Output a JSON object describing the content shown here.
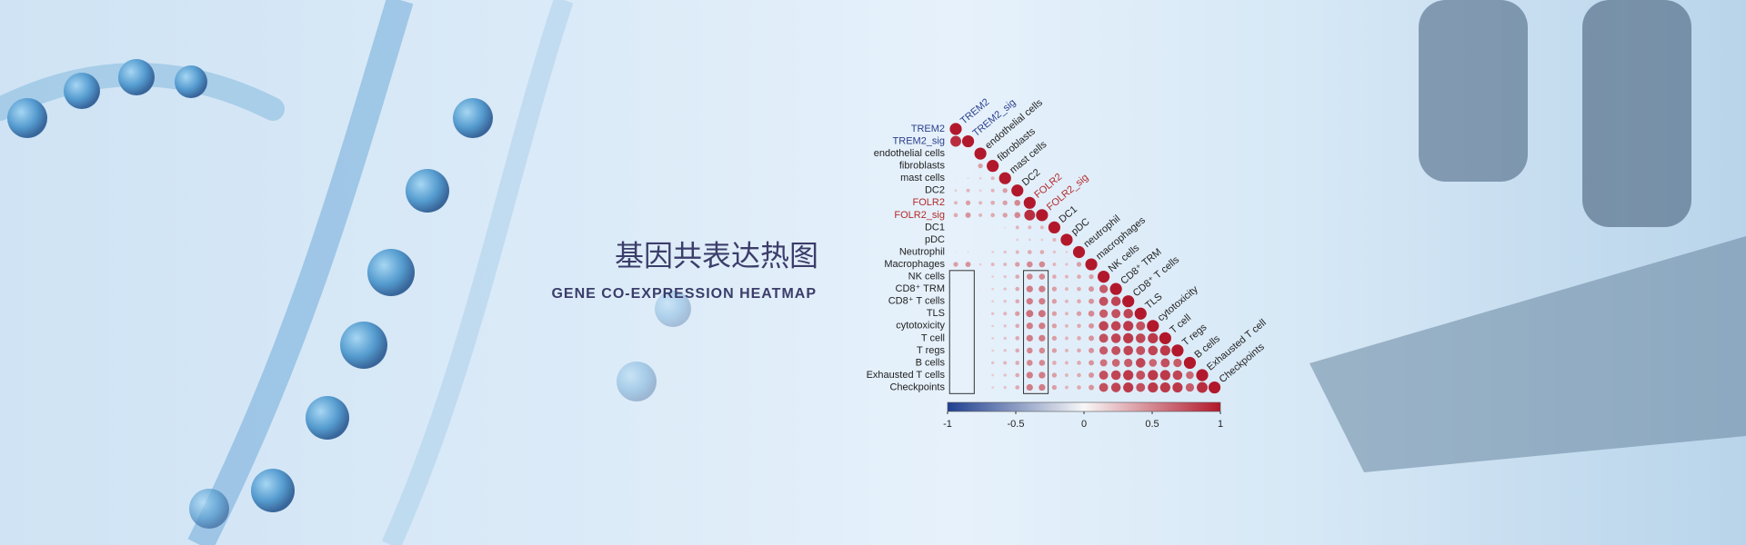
{
  "banner": {
    "title": "基因共表达热图",
    "subtitle": "GENE CO-EXPRESSION HEATMAP"
  },
  "chart_data": {
    "type": "correlation",
    "rows": [
      "TREM2",
      "TREM2_sig",
      "endothelial cells",
      "fibroblasts",
      "mast cells",
      "DC2",
      "FOLR2",
      "FOLR2_sig",
      "DC1",
      "pDC",
      "Neutrophil",
      "Macrophages",
      "NK cells",
      "CD8⁺ TRM",
      "CD8⁺ T cells",
      "TLS",
      "cytotoxicity",
      "T cell",
      "T regs",
      "B cells",
      "Exhausted T cells",
      "Checkpoints"
    ],
    "columns": [
      "TREM2",
      "TREM2_sig",
      "endothelial cells",
      "fibroblasts",
      "mast cells",
      "DC2",
      "FOLR2",
      "FOLR2_sig",
      "DC1",
      "pDC",
      "neutrophil",
      "macrophages",
      "NK cells",
      "CD8⁺ TRM",
      "CD8⁺ T cells",
      "TLS",
      "cytotoxicity",
      "T cell",
      "T regs",
      "B cells",
      "Exhausted T cell",
      "Checkpoints"
    ],
    "label_colors": [
      "#2b3f8c",
      "#2b3f8c",
      "#222222",
      "#222222",
      "#222222",
      "#222222",
      "#b22a2a",
      "#b22a2a",
      "#222222",
      "#222222",
      "#222222",
      "#222222",
      "#222222",
      "#222222",
      "#222222",
      "#222222",
      "#222222",
      "#222222",
      "#222222",
      "#222222",
      "#222222",
      "#222222"
    ],
    "values": [
      [
        1
      ],
      [
        0.9,
        1
      ],
      [
        -0.05,
        -0.05,
        1
      ],
      [
        0.05,
        0.1,
        0.4,
        1
      ],
      [
        0.1,
        0.15,
        0.2,
        0.3,
        1
      ],
      [
        0.2,
        0.3,
        0.2,
        0.3,
        0.4,
        1
      ],
      [
        0.3,
        0.4,
        0.3,
        0.35,
        0.4,
        0.5,
        1
      ],
      [
        0.35,
        0.45,
        0.3,
        0.35,
        0.4,
        0.5,
        0.9,
        1
      ],
      [
        -0.05,
        0,
        -0.05,
        0.1,
        0.15,
        0.3,
        0.3,
        0.3,
        1
      ],
      [
        0,
        0.05,
        -0.05,
        0.05,
        0.1,
        0.2,
        0.2,
        0.2,
        0.3,
        1
      ],
      [
        0.1,
        0.15,
        0.1,
        0.2,
        0.25,
        0.3,
        0.35,
        0.35,
        0.25,
        0.2,
        1
      ],
      [
        0.4,
        0.45,
        0.2,
        0.3,
        0.3,
        0.4,
        0.5,
        0.5,
        0.3,
        0.25,
        0.4,
        1
      ],
      [
        -0.05,
        -0.05,
        0.1,
        0.2,
        0.25,
        0.35,
        0.5,
        0.5,
        0.35,
        0.3,
        0.35,
        0.4,
        1
      ],
      [
        -0.05,
        -0.05,
        0.1,
        0.2,
        0.25,
        0.35,
        0.55,
        0.55,
        0.4,
        0.3,
        0.35,
        0.45,
        0.7,
        1
      ],
      [
        -0.05,
        -0.05,
        0.1,
        0.2,
        0.25,
        0.35,
        0.55,
        0.55,
        0.4,
        0.3,
        0.35,
        0.45,
        0.75,
        0.8,
        1
      ],
      [
        -0.05,
        -0.05,
        0.1,
        0.25,
        0.3,
        0.4,
        0.6,
        0.6,
        0.4,
        0.3,
        0.4,
        0.5,
        0.7,
        0.75,
        0.8,
        1
      ],
      [
        -0.05,
        -0.05,
        0.1,
        0.2,
        0.25,
        0.35,
        0.55,
        0.55,
        0.4,
        0.3,
        0.35,
        0.45,
        0.8,
        0.8,
        0.85,
        0.75,
        1
      ],
      [
        -0.05,
        -0.05,
        0.1,
        0.2,
        0.25,
        0.35,
        0.55,
        0.55,
        0.4,
        0.3,
        0.35,
        0.45,
        0.75,
        0.8,
        0.85,
        0.8,
        0.85,
        1
      ],
      [
        -0.05,
        -0.05,
        0.1,
        0.2,
        0.25,
        0.35,
        0.5,
        0.5,
        0.4,
        0.3,
        0.35,
        0.45,
        0.7,
        0.75,
        0.8,
        0.75,
        0.8,
        0.85,
        1
      ],
      [
        -0.05,
        -0.05,
        0.1,
        0.25,
        0.3,
        0.35,
        0.5,
        0.5,
        0.35,
        0.3,
        0.35,
        0.45,
        0.6,
        0.65,
        0.7,
        0.8,
        0.65,
        0.75,
        0.7,
        1
      ],
      [
        -0.05,
        -0.05,
        0.1,
        0.2,
        0.25,
        0.35,
        0.55,
        0.55,
        0.4,
        0.3,
        0.35,
        0.45,
        0.75,
        0.8,
        0.85,
        0.75,
        0.85,
        0.85,
        0.8,
        0.65,
        1
      ],
      [
        -0.05,
        -0.05,
        0.1,
        0.2,
        0.25,
        0.35,
        0.55,
        0.55,
        0.4,
        0.3,
        0.35,
        0.45,
        0.75,
        0.8,
        0.85,
        0.75,
        0.85,
        0.85,
        0.85,
        0.7,
        0.9,
        1
      ]
    ],
    "clim": [
      -1,
      1
    ],
    "colors": [
      "#1f3f8f",
      "#f7f7f7",
      "#b2182b"
    ],
    "colorbar_ticks": [
      -1,
      -0.5,
      0,
      0.5,
      1
    ]
  }
}
